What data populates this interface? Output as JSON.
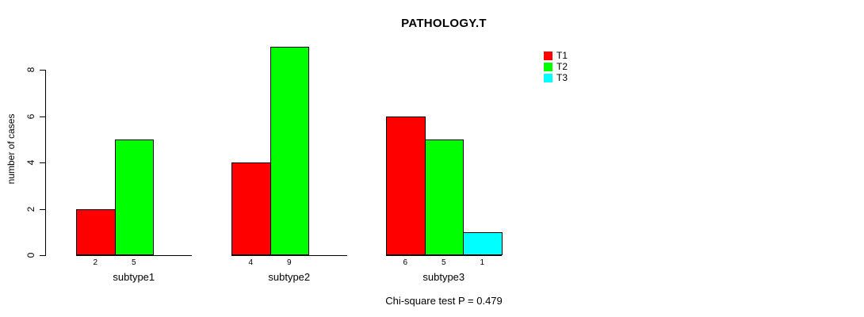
{
  "chart_data": {
    "type": "bar",
    "title": "PATHOLOGY.T",
    "xlabel": "",
    "ylabel": "number of cases",
    "categories": [
      "subtype1",
      "subtype2",
      "subtype3"
    ],
    "series": [
      {
        "name": "T1",
        "color": "#ff0000",
        "values": [
          2,
          4,
          6
        ]
      },
      {
        "name": "T2",
        "color": "#00ff00",
        "values": [
          5,
          9,
          5
        ]
      },
      {
        "name": "T3",
        "color": "#00ffff",
        "values": [
          0,
          0,
          1
        ]
      }
    ],
    "yticks": [
      0,
      2,
      4,
      6,
      8
    ],
    "ylim": [
      0,
      8
    ],
    "bar_value_labels": true,
    "grid": false,
    "legend_position": "top-right",
    "annotation": "Chi-square test P = 0.479"
  },
  "colors": {
    "background": "#ffffff",
    "axis": "#000000",
    "text": "#000000"
  }
}
